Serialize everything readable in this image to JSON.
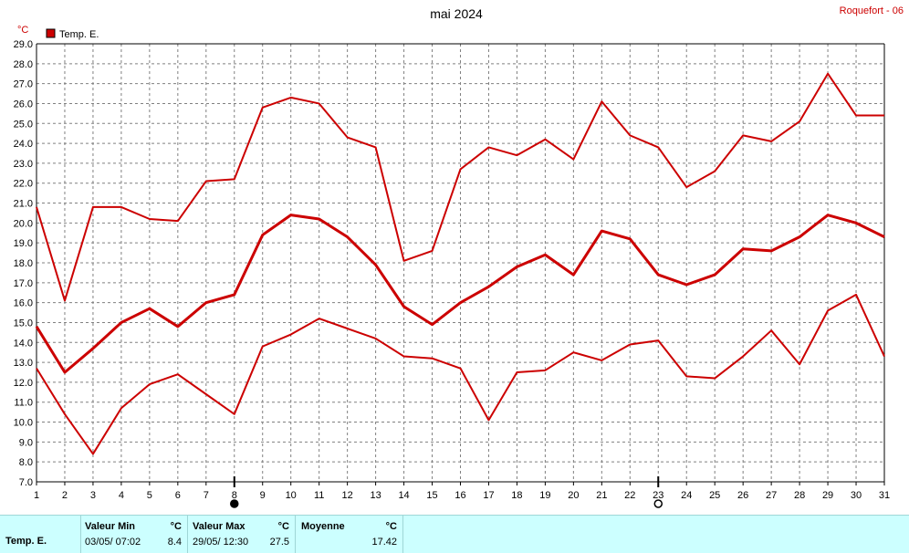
{
  "chart_data": {
    "type": "line",
    "title": "mai 2024",
    "station": "Roquefort - 06",
    "unit": "°C",
    "legend": "Temp. E.",
    "color": "#cc0000",
    "x": [
      1,
      2,
      3,
      4,
      5,
      6,
      7,
      8,
      9,
      10,
      11,
      12,
      13,
      14,
      15,
      16,
      17,
      18,
      19,
      20,
      21,
      22,
      23,
      24,
      25,
      26,
      27,
      28,
      29,
      30,
      31
    ],
    "xlim": [
      1,
      31
    ],
    "ylim": [
      7.0,
      29.0
    ],
    "yticks": [
      "7.0",
      "8.0",
      "9.0",
      "10.0",
      "11.0",
      "12.0",
      "13.0",
      "14.0",
      "15.0",
      "16.0",
      "17.0",
      "18.0",
      "19.0",
      "20.0",
      "21.0",
      "22.0",
      "23.0",
      "24.0",
      "25.0",
      "26.0",
      "27.0",
      "28.0",
      "29.0"
    ],
    "grid": true,
    "series": [
      {
        "kind": "max",
        "values": [
          20.8,
          16.1,
          20.8,
          20.8,
          20.2,
          20.1,
          22.1,
          22.2,
          25.8,
          26.3,
          26.0,
          24.3,
          23.8,
          18.1,
          18.6,
          22.7,
          23.8,
          23.4,
          24.2,
          23.2,
          26.1,
          24.4,
          23.8,
          21.8,
          22.6,
          24.4,
          24.1,
          25.1,
          27.5,
          25.4,
          25.4
        ]
      },
      {
        "kind": "mean",
        "values": [
          14.8,
          12.5,
          13.7,
          15.0,
          15.7,
          14.8,
          16.0,
          16.4,
          19.4,
          20.4,
          20.2,
          19.3,
          17.9,
          15.8,
          14.9,
          16.0,
          16.8,
          17.8,
          18.4,
          17.4,
          19.6,
          19.2,
          17.4,
          16.9,
          17.4,
          18.7,
          18.6,
          19.3,
          20.4,
          20.0,
          19.3
        ]
      },
      {
        "kind": "min",
        "values": [
          12.7,
          10.4,
          8.4,
          10.7,
          11.9,
          12.4,
          11.4,
          10.4,
          13.8,
          14.4,
          15.2,
          14.7,
          14.2,
          13.3,
          13.2,
          12.7,
          10.1,
          12.5,
          12.6,
          13.5,
          13.1,
          13.9,
          14.1,
          12.3,
          12.2,
          13.3,
          14.6,
          12.9,
          15.6,
          16.4,
          13.3
        ]
      }
    ],
    "moon_phases": [
      {
        "day": 8,
        "phase": "new-moon"
      },
      {
        "day": 23,
        "phase": "full-moon"
      }
    ]
  },
  "footer": {
    "row_label": "Temp. E.",
    "min": {
      "header": "Valeur Min",
      "unit": "°C",
      "date": "03/05/  07:02",
      "value": "8.4"
    },
    "max": {
      "header": "Valeur Max",
      "unit": "°C",
      "date": "29/05/  12:30",
      "value": "27.5"
    },
    "mean": {
      "header": "Moyenne",
      "unit": "°C",
      "value": "17.42"
    }
  }
}
